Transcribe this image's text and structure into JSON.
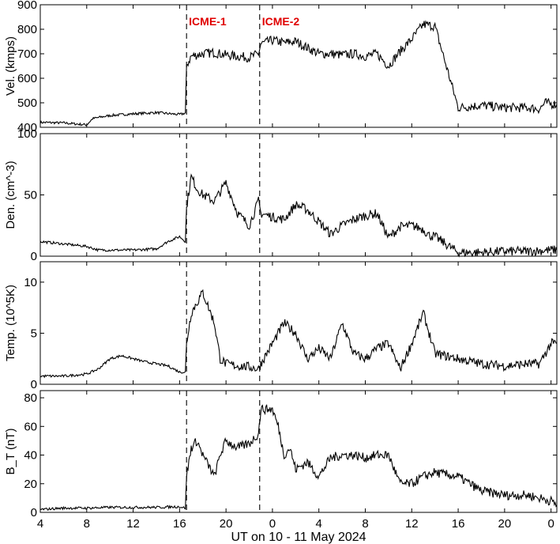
{
  "figure": {
    "xlabel": "UT on 10 - 11 May 2024",
    "x_tick_labels": [
      "4",
      "8",
      "12",
      "16",
      "20",
      "0",
      "4",
      "8",
      "12",
      "16",
      "20",
      "0"
    ],
    "x_tick_hours": [
      4,
      8,
      12,
      16,
      20,
      24,
      28,
      32,
      36,
      40,
      44,
      48
    ],
    "xlim_hours": [
      4,
      48.5
    ],
    "events": [
      {
        "label": "ICME-1",
        "hour": 16.6,
        "color": "#e00000"
      },
      {
        "label": "ICME-2",
        "hour": 22.9,
        "color": "#e00000"
      }
    ]
  },
  "chart_data": [
    {
      "type": "line",
      "ylabel": "Vel. (kmps)",
      "ylim": [
        400,
        900
      ],
      "yticks": [
        400,
        500,
        600,
        700,
        800,
        900
      ],
      "x": [
        4,
        6,
        8,
        8.5,
        9,
        10,
        12,
        14,
        16,
        16.5,
        16.6,
        17,
        18,
        19,
        20,
        21,
        22,
        22.8,
        23,
        24,
        25,
        26,
        27,
        28,
        29,
        30,
        31,
        32,
        33,
        34,
        35,
        36,
        37,
        38,
        40,
        42,
        44,
        46,
        47,
        47.5,
        48,
        48.5
      ],
      "y": [
        420,
        418,
        410,
        435,
        440,
        448,
        455,
        460,
        452,
        458,
        650,
        690,
        700,
        705,
        695,
        690,
        685,
        700,
        740,
        755,
        745,
        750,
        725,
        700,
        700,
        695,
        700,
        690,
        700,
        650,
        710,
        760,
        820,
        812,
        480,
        490,
        480,
        480,
        475,
        500,
        495,
        495
      ]
    },
    {
      "type": "line",
      "ylabel": "Den. (cm^-3)",
      "ylim": [
        0,
        100
      ],
      "yticks": [
        0,
        50,
        100
      ],
      "x": [
        4,
        6,
        8,
        9,
        10,
        12,
        14,
        15,
        16,
        16.5,
        16.6,
        17,
        17.5,
        18,
        19,
        20,
        21,
        22,
        22.8,
        23,
        24,
        25,
        26,
        27,
        28,
        29,
        30,
        31,
        32,
        33,
        33.5,
        34,
        35,
        36,
        37,
        37.5,
        38,
        40,
        42,
        44,
        46,
        48,
        48.5
      ],
      "y": [
        12,
        10,
        8,
        5,
        5,
        5,
        6,
        12,
        16,
        12,
        40,
        65,
        55,
        50,
        45,
        60,
        35,
        25,
        45,
        35,
        32,
        30,
        42,
        38,
        28,
        18,
        25,
        30,
        33,
        35,
        25,
        15,
        24,
        25,
        22,
        17,
        16,
        3,
        3,
        4,
        4,
        5,
        5
      ]
    },
    {
      "type": "line",
      "ylabel": "Temp. (10^5K)",
      "ylim": [
        0,
        12
      ],
      "yticks": [
        0,
        5,
        10
      ],
      "x": [
        4,
        6,
        8,
        9,
        10,
        11,
        12,
        13,
        14,
        15,
        16,
        16.5,
        16.6,
        17,
        18,
        19,
        19.5,
        20,
        21,
        22,
        22.8,
        23,
        24,
        25,
        26,
        27,
        28,
        29,
        30,
        31,
        32,
        33,
        34,
        35,
        36,
        37,
        38,
        40,
        42,
        44,
        46,
        47,
        48,
        48.5
      ],
      "y": [
        0.8,
        0.8,
        1,
        1.5,
        2.5,
        2.8,
        2.5,
        2.2,
        2,
        1.8,
        1.2,
        1.2,
        4,
        7,
        9,
        6,
        2.5,
        2,
        1.8,
        1.7,
        1.5,
        2,
        4,
        6,
        5,
        2.5,
        3.5,
        2.5,
        6,
        3,
        2.5,
        3.5,
        4,
        1.5,
        4,
        7,
        3,
        2.5,
        2,
        1.8,
        2,
        2,
        4,
        4
      ]
    },
    {
      "type": "line",
      "ylabel": "B_T (nT)",
      "ylim": [
        0,
        85
      ],
      "yticks": [
        0,
        20,
        40,
        60,
        80
      ],
      "x": [
        4,
        6,
        8,
        10,
        12,
        14,
        16,
        16.5,
        16.6,
        17,
        17.5,
        18,
        19,
        19.5,
        20,
        21,
        22,
        22.8,
        23,
        24,
        24.5,
        25,
        25.5,
        26,
        27,
        28,
        29,
        30,
        31,
        32,
        33,
        34,
        35,
        36,
        37,
        38,
        38.5,
        40,
        42,
        44,
        46,
        47,
        48,
        48.5
      ],
      "y": [
        2,
        3,
        3,
        3.5,
        3.5,
        3.5,
        4,
        3,
        25,
        45,
        50,
        40,
        25,
        40,
        50,
        45,
        48,
        55,
        72,
        72,
        60,
        40,
        45,
        30,
        35,
        25,
        38,
        40,
        40,
        38,
        40,
        40,
        20,
        20,
        25,
        28,
        27,
        25,
        15,
        12,
        12,
        10,
        8,
        5
      ]
    }
  ]
}
